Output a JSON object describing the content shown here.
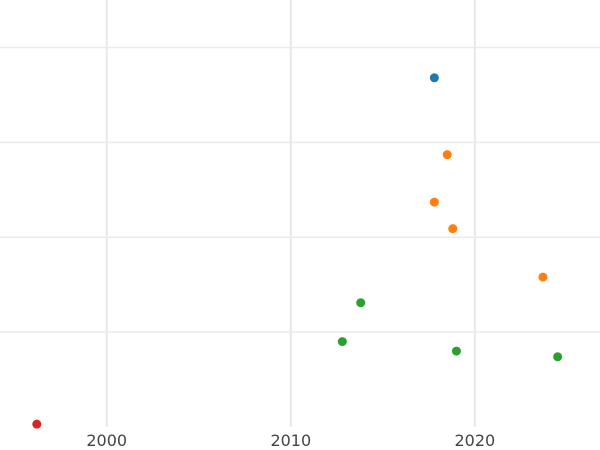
{
  "chart_data": {
    "type": "scatter",
    "title": "",
    "xlabel": "",
    "ylabel": "",
    "xlim": [
      1994.2,
      2026.8
    ],
    "ylim": [
      0.0,
      4.5
    ],
    "grid": true,
    "x_ticks": [
      2000,
      2010,
      2020
    ],
    "x_tick_labels": [
      "2000",
      "2010",
      "2020"
    ],
    "y_gridlines": [
      1,
      2,
      3,
      4
    ],
    "series": [
      {
        "color": "#1f77b4",
        "points": [
          {
            "x": 2017.8,
            "y": 3.68
          }
        ]
      },
      {
        "color": "#ff7f0e",
        "points": [
          {
            "x": 2018.5,
            "y": 2.87
          },
          {
            "x": 2017.8,
            "y": 2.37
          },
          {
            "x": 2018.8,
            "y": 2.09
          },
          {
            "x": 2023.7,
            "y": 1.58
          }
        ]
      },
      {
        "color": "#2ca02c",
        "points": [
          {
            "x": 2013.8,
            "y": 1.31
          },
          {
            "x": 2012.8,
            "y": 0.9
          },
          {
            "x": 2019.0,
            "y": 0.8
          },
          {
            "x": 2024.5,
            "y": 0.74
          }
        ]
      },
      {
        "color": "#d62728",
        "points": [
          {
            "x": 1996.2,
            "y": 0.03
          }
        ]
      }
    ]
  }
}
